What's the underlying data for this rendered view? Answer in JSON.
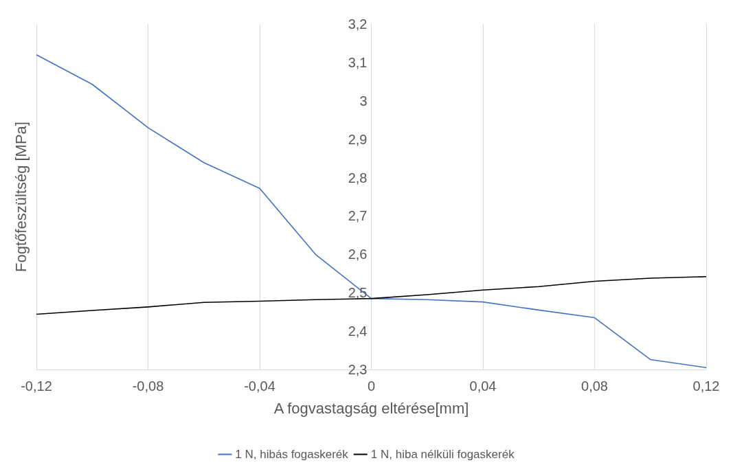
{
  "chart_data": {
    "type": "line",
    "xlabel": "A fogvastagság eltérése[mm]",
    "ylabel": "Fogtőfeszültség [MPa]",
    "x": [
      -0.12,
      -0.1,
      -0.08,
      -0.06,
      -0.04,
      -0.02,
      0,
      0.02,
      0.04,
      0.06,
      0.08,
      0.1,
      0.12
    ],
    "series": [
      {
        "name": "1 N, hibás fogaskerék",
        "color": "#4472c4",
        "values": [
          3.12,
          3.043,
          2.93,
          2.839,
          2.772,
          2.6,
          2.485,
          2.482,
          2.476,
          2.455,
          2.435,
          2.326,
          2.305
        ]
      },
      {
        "name": "1 N, hiba nélküli fogaskerék",
        "color": "#000000",
        "values": [
          2.444,
          2.454,
          2.463,
          2.475,
          2.478,
          2.482,
          2.485,
          2.495,
          2.507,
          2.516,
          2.53,
          2.538,
          2.542
        ]
      }
    ],
    "xlim": [
      -0.12,
      0.12
    ],
    "xticks": [
      {
        "value": -0.12,
        "label": "-0,12"
      },
      {
        "value": -0.08,
        "label": "-0,08"
      },
      {
        "value": -0.04,
        "label": "-0,04"
      },
      0,
      {
        "value": 0.04,
        "label": "0,04"
      },
      {
        "value": 0.08,
        "label": "0,08"
      },
      {
        "value": 0.12,
        "label": "0,12"
      }
    ],
    "ylim": [
      2.3,
      3.2
    ],
    "yticks": [
      {
        "value": 2.3,
        "label": "2,3"
      },
      {
        "value": 2.4,
        "label": "2,4"
      },
      {
        "value": 2.5,
        "label": "2,5"
      },
      {
        "value": 2.6,
        "label": "2,6"
      },
      {
        "value": 2.7,
        "label": "2,7"
      },
      {
        "value": 2.8,
        "label": "2,8"
      },
      {
        "value": 2.9,
        "label": "2,9"
      },
      3,
      {
        "value": 3.1,
        "label": "3,1"
      },
      {
        "value": 3.2,
        "label": "3,2"
      }
    ],
    "grid": "x",
    "legend": "bottom",
    "marker": "none",
    "line_style": "solid"
  }
}
